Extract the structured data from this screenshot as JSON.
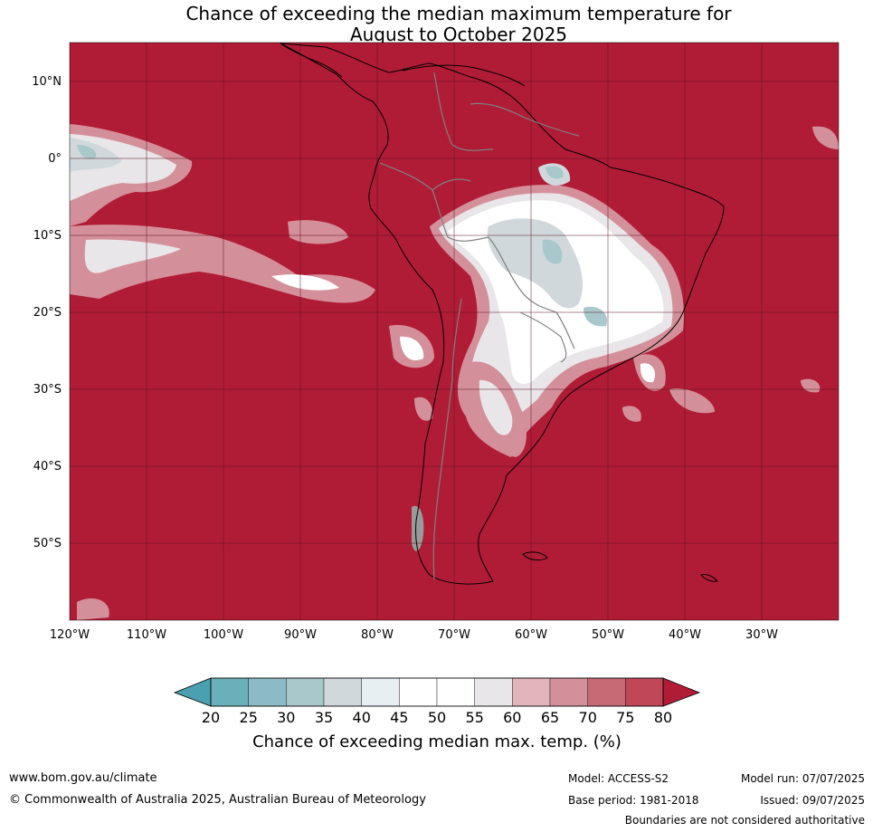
{
  "title_line1": "Chance of exceeding the median maximum temperature for",
  "title_line2": "August to October 2025",
  "colors": {
    "ocean_hot": "#B01C36",
    "grid": "#5a1020",
    "coast": "#000000",
    "border": "#808080"
  },
  "lat_labels": [
    "10°N",
    "0°",
    "10°S",
    "20°S",
    "30°S",
    "40°S",
    "50°S"
  ],
  "lon_labels": [
    "120°W",
    "110°W",
    "100°W",
    "90°W",
    "80°W",
    "70°W",
    "60°W",
    "50°W",
    "40°W",
    "30°W"
  ],
  "colorbar": {
    "ticks": [
      "20",
      "25",
      "30",
      "35",
      "40",
      "45",
      "50",
      "55",
      "60",
      "65",
      "70",
      "75",
      "80"
    ],
    "colors": [
      "#4AA0AE",
      "#6BAFBB",
      "#8CBAC6",
      "#A8C8CC",
      "#D0D8DC",
      "#E8EFF2",
      "#FFFFFF",
      "#FFFFFF",
      "#E8E6E8",
      "#E2B4BC",
      "#D4909A",
      "#C86A76",
      "#BE4858",
      "#B01C36"
    ],
    "label": "Chance of exceeding median max. temp. (%)"
  },
  "footer": {
    "url": "www.bom.gov.au/climate",
    "copyright": "© Commonwealth of Australia 2025, Australian Bureau of Meteorology",
    "model": "Model: ACCESS-S2",
    "model_run": "Model run: 07/07/2025",
    "base_period": "Base period: 1981-2018",
    "issued": "Issued: 09/07/2025",
    "disclaimer": "Boundaries are not considered authoritative"
  }
}
